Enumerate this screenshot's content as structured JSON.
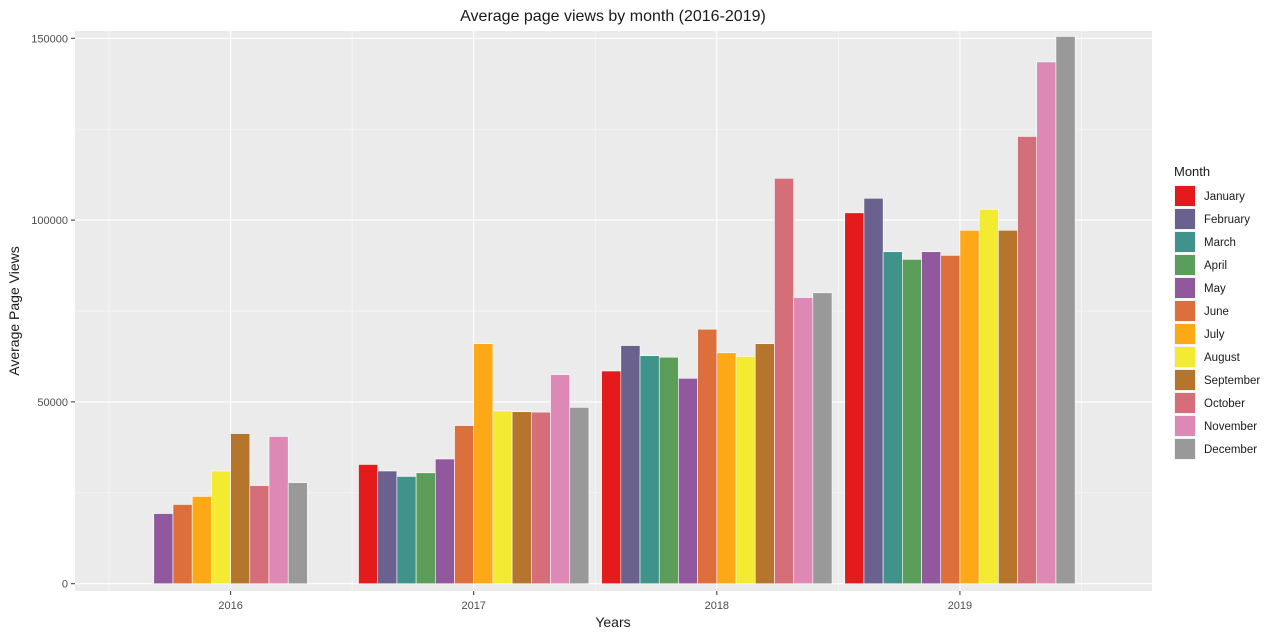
{
  "chart_data": {
    "type": "bar",
    "title": "Average page views by month (2016-2019)",
    "xlabel": "Years",
    "ylabel": "Average Page Views",
    "ylim": [
      -2000,
      152000
    ],
    "yticks": [
      0,
      50000,
      100000,
      150000
    ],
    "categories": [
      "2016",
      "2017",
      "2018",
      "2019"
    ],
    "legend": {
      "title": "Month",
      "placement": "right"
    },
    "grid": true,
    "series": [
      {
        "name": "January",
        "color": "#e41a1c",
        "values": [
          null,
          32800,
          58500,
          102000
        ]
      },
      {
        "name": "February",
        "color": "#6a618f",
        "values": [
          null,
          31000,
          65500,
          106000
        ]
      },
      {
        "name": "March",
        "color": "#40938a",
        "values": [
          null,
          29500,
          62700,
          91300
        ]
      },
      {
        "name": "April",
        "color": "#5a9e5a",
        "values": [
          null,
          30500,
          62300,
          89200
        ]
      },
      {
        "name": "May",
        "color": "#91589e",
        "values": [
          19300,
          34300,
          56500,
          91300
        ]
      },
      {
        "name": "June",
        "color": "#dc6f3c",
        "values": [
          21800,
          43500,
          70000,
          90300
        ]
      },
      {
        "name": "July",
        "color": "#fda816",
        "values": [
          24000,
          66000,
          63500,
          97200
        ]
      },
      {
        "name": "August",
        "color": "#f3ea32",
        "values": [
          31000,
          47500,
          62500,
          103000
        ]
      },
      {
        "name": "September",
        "color": "#b6752c",
        "values": [
          41300,
          47300,
          66000,
          97200
        ]
      },
      {
        "name": "October",
        "color": "#d46f7a",
        "values": [
          27000,
          47200,
          111500,
          123000
        ]
      },
      {
        "name": "November",
        "color": "#de88b6",
        "values": [
          40500,
          57500,
          78700,
          143500
        ]
      },
      {
        "name": "December",
        "color": "#999999",
        "values": [
          27800,
          48500,
          80000,
          150500
        ]
      }
    ]
  }
}
